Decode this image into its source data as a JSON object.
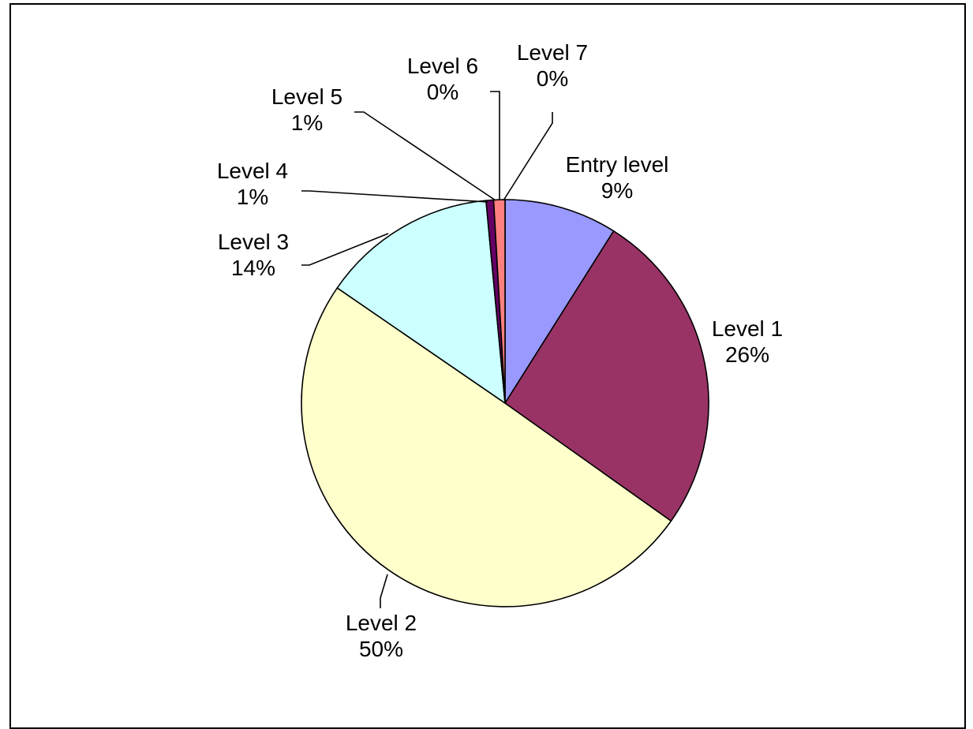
{
  "chart_data": {
    "type": "pie",
    "title": "",
    "slices": [
      {
        "name": "Entry level",
        "value": 9,
        "label": "9%",
        "color": "#9999FF"
      },
      {
        "name": "Level 1",
        "value": 26,
        "label": "26%",
        "color": "#993366"
      },
      {
        "name": "Level 2",
        "value": 50,
        "label": "50%",
        "color": "#FFFFCC"
      },
      {
        "name": "Level 3",
        "value": 14,
        "label": "14%",
        "color": "#CCFFFF"
      },
      {
        "name": "Level 4",
        "value": 0.6,
        "label": "1%",
        "color": "#660066"
      },
      {
        "name": "Level 5",
        "value": 0.9,
        "label": "1%",
        "color": "#FF8080"
      },
      {
        "name": "Level 6",
        "value": 0.0,
        "label": "0%",
        "color": "#0066CC"
      },
      {
        "name": "Level 7",
        "value": 0.0,
        "label": "0%",
        "color": "#CCCCFF"
      }
    ],
    "start_angle": "12 o'clock",
    "direction": "clockwise",
    "legend": "none"
  }
}
